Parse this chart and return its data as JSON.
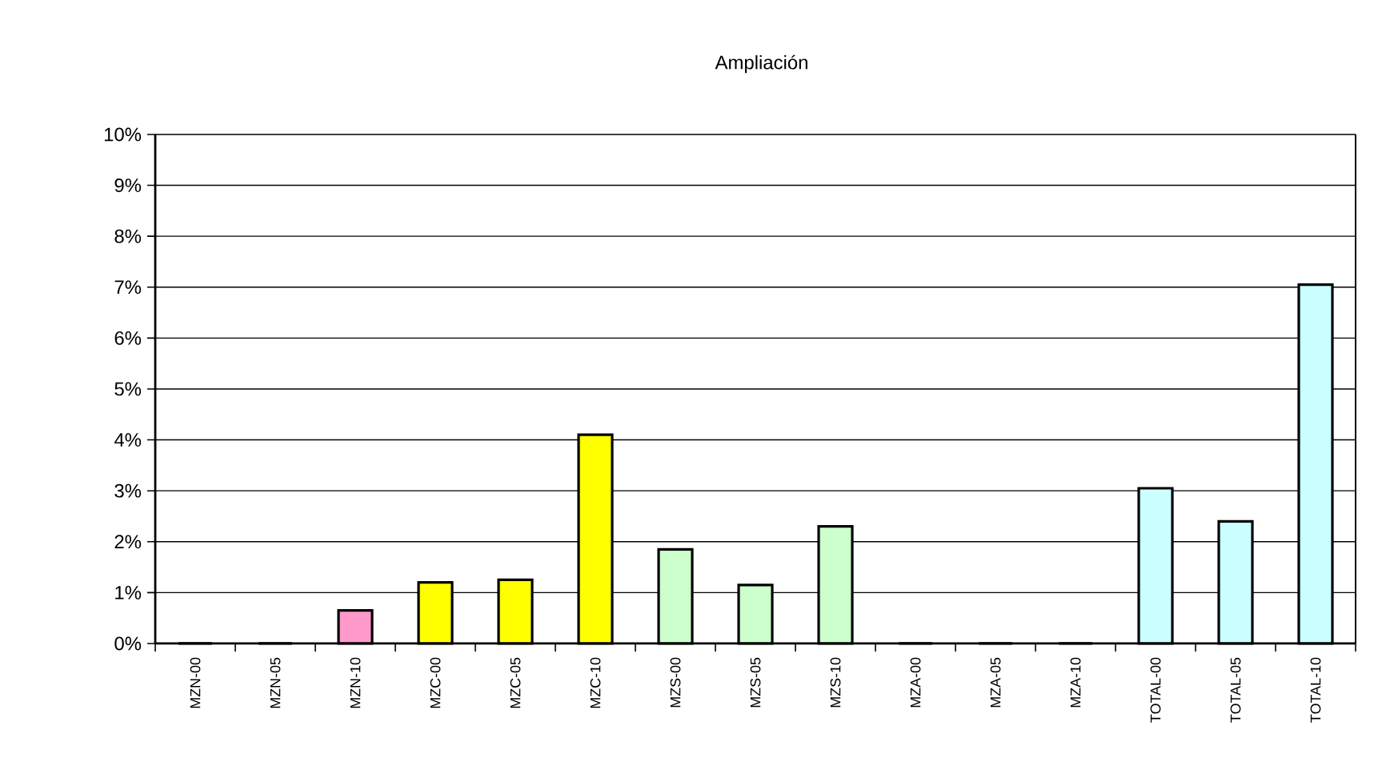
{
  "chart_data": {
    "type": "bar",
    "title": "Ampliación",
    "categories": [
      "MZN-00",
      "MZN-05",
      "MZN-10",
      "MZC-00",
      "MZC-05",
      "MZC-10",
      "MZS-00",
      "MZS-05",
      "MZS-10",
      "MZA-00",
      "MZA-05",
      "MZA-10",
      "TOTAL-00",
      "TOTAL-05",
      "TOTAL-10"
    ],
    "values": [
      0,
      0,
      0.65,
      1.2,
      1.25,
      4.1,
      1.85,
      1.15,
      2.3,
      0,
      0,
      0,
      3.05,
      2.4,
      7.05
    ],
    "colors": [
      "#ff99cc",
      "#ff99cc",
      "#ff99cc",
      "#ffff00",
      "#ffff00",
      "#ffff00",
      "#ccffcc",
      "#ccffcc",
      "#ccffcc",
      "#ffcc99",
      "#ffcc99",
      "#ffcc99",
      "#ccffff",
      "#ccffff",
      "#ccffff"
    ],
    "ylim": [
      0,
      10
    ],
    "yticks": [
      {
        "value": 0,
        "label": "0%"
      },
      {
        "value": 1,
        "label": "1%"
      },
      {
        "value": 2,
        "label": "2%"
      },
      {
        "value": 3,
        "label": "3%"
      },
      {
        "value": 4,
        "label": "4%"
      },
      {
        "value": 5,
        "label": "5%"
      },
      {
        "value": 6,
        "label": "6%"
      },
      {
        "value": 7,
        "label": "7%"
      },
      {
        "value": 8,
        "label": "8%"
      },
      {
        "value": 9,
        "label": "9%"
      },
      {
        "value": 10,
        "label": "10%"
      }
    ],
    "grid": "y"
  }
}
